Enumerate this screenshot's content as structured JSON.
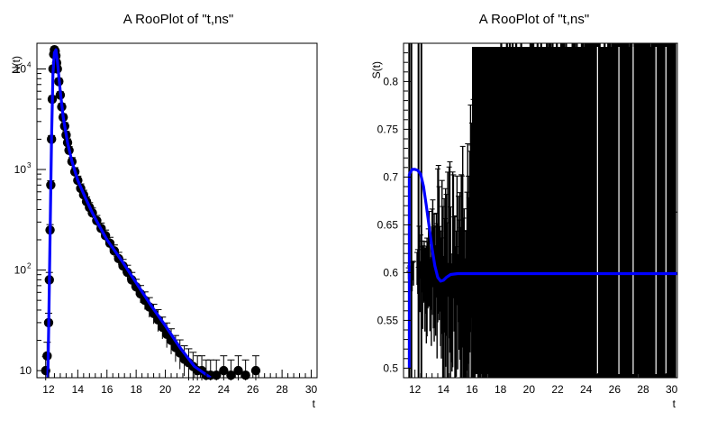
{
  "chart_data": [
    {
      "type": "line",
      "title": "A RooPlot of \"t,ns\"",
      "xlabel": "t",
      "ylabel": "N(t)",
      "xlim": [
        11.2,
        30.4
      ],
      "ylim": [
        8.5,
        18000
      ],
      "yscale": "log",
      "xticks": [
        "12",
        "14",
        "16",
        "18",
        "20",
        "22",
        "24",
        "26",
        "28",
        "30"
      ],
      "yticks": [
        {
          "value": 10,
          "label": "10"
        },
        {
          "value": 100,
          "label": "10",
          "sup": "2"
        },
        {
          "value": 1000,
          "label": "10",
          "sup": "3"
        },
        {
          "value": 10000,
          "label": "10",
          "sup": "4"
        }
      ],
      "grid": false,
      "series": [
        {
          "kind": "data points with error bars",
          "color": "#000000",
          "x": [
            11.8,
            11.9,
            12.0,
            12.05,
            12.1,
            12.15,
            12.2,
            12.25,
            12.3,
            12.35,
            12.4,
            12.45,
            12.5,
            12.55,
            12.6,
            12.7,
            12.8,
            12.9,
            13.0,
            13.1,
            13.2,
            13.3,
            13.4,
            13.6,
            13.8,
            14.0,
            14.2,
            14.4,
            14.6,
            14.8,
            15.0,
            15.3,
            15.6,
            15.9,
            16.2,
            16.5,
            16.8,
            17.1,
            17.4,
            17.7,
            18.0,
            18.3,
            18.6,
            18.9,
            19.2,
            19.5,
            19.8,
            20.1,
            20.4,
            20.7,
            21.0,
            21.3,
            21.6,
            21.9,
            22.2,
            22.5,
            22.8,
            23.1,
            23.5,
            24.0,
            24.5,
            25.0,
            25.5,
            26.2
          ],
          "y": [
            10,
            14,
            30,
            80,
            250,
            700,
            2000,
            5000,
            10000,
            14000,
            15500,
            15000,
            13500,
            11500,
            10000,
            7500,
            5500,
            4200,
            3300,
            2700,
            2200,
            1850,
            1550,
            1200,
            950,
            780,
            650,
            560,
            480,
            420,
            370,
            310,
            260,
            220,
            185,
            155,
            130,
            110,
            95,
            80,
            68,
            58,
            50,
            43,
            37,
            32,
            27,
            23,
            20,
            17,
            15,
            13,
            12,
            11,
            10,
            10,
            9,
            9,
            9,
            10,
            9,
            10,
            9,
            10
          ],
          "errors": [
            3,
            4,
            5,
            9,
            16,
            26,
            45,
            70,
            100,
            118,
            124,
            122,
            116,
            107,
            100,
            87,
            74,
            65,
            57,
            52,
            47,
            43,
            39,
            35,
            31,
            28,
            25,
            24,
            22,
            20,
            19,
            18,
            16,
            15,
            14,
            12,
            11,
            10,
            10,
            9,
            8,
            8,
            7,
            7,
            6,
            6,
            5,
            5,
            4.5,
            4,
            4,
            3.6,
            3.5,
            3.3,
            3.2,
            3.2,
            3,
            3,
            3,
            3.2,
            3,
            3.2,
            3,
            3.2
          ]
        },
        {
          "kind": "fit curve",
          "color": "#0000ff",
          "x": [
            11.95,
            12.0,
            12.1,
            12.2,
            12.3,
            12.4,
            12.5,
            12.6,
            12.8,
            13.0,
            13.3,
            13.6,
            14.0,
            14.5,
            15.0,
            15.5,
            16.0,
            17.0,
            18.0,
            19.0,
            20.0,
            21.0,
            22.0,
            23.1
          ],
          "y": [
            8.5,
            25,
            220,
            2000,
            9000,
            14500,
            15500,
            12000,
            6000,
            3300,
            1850,
            1200,
            780,
            530,
            370,
            270,
            200,
            125,
            75,
            45,
            28,
            17,
            11,
            8.5
          ]
        }
      ]
    },
    {
      "type": "line",
      "title": "A RooPlot of \"t,ns\"",
      "xlabel": "t",
      "ylabel": "S(t)",
      "xlim": [
        11.2,
        30.4
      ],
      "ylim": [
        0.49,
        0.84
      ],
      "xticks": [
        "12",
        "14",
        "16",
        "18",
        "20",
        "22",
        "24",
        "26",
        "28",
        "30"
      ],
      "yticks": [
        "0.5",
        "0.55",
        "0.6",
        "0.65",
        "0.7",
        "0.75",
        "0.8"
      ],
      "grid": false,
      "series": [
        {
          "kind": "fit curve",
          "color": "#0000ff",
          "x": [
            11.6,
            11.8,
            12.0,
            12.2,
            12.4,
            12.6,
            12.8,
            13.0,
            13.2,
            13.4,
            13.6,
            13.8,
            14.0,
            14.2,
            14.5,
            15.0,
            16.0,
            18.0,
            22.0,
            26.0,
            30.4
          ],
          "y": [
            0.703,
            0.708,
            0.708,
            0.707,
            0.703,
            0.69,
            0.67,
            0.648,
            0.625,
            0.607,
            0.595,
            0.591,
            0.592,
            0.595,
            0.598,
            0.599,
            0.599,
            0.599,
            0.599,
            0.599,
            0.599
          ]
        }
      ]
    }
  ]
}
